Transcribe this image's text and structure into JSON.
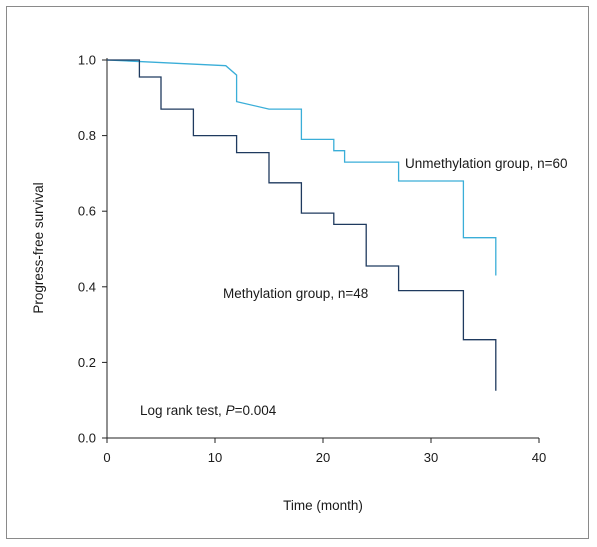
{
  "chart_data": {
    "type": "line",
    "step": true,
    "xlabel": "Time (month)",
    "ylabel": "Progress-free survival",
    "xlim": [
      0,
      40
    ],
    "ylim": [
      0,
      1.0
    ],
    "x_ticks": [
      "0",
      "10",
      "20",
      "30",
      "40"
    ],
    "y_ticks": [
      "0.0",
      "0.2",
      "0.4",
      "0.6",
      "0.8",
      "1.0"
    ],
    "grid": false,
    "annotation": {
      "prefix": "Log rank test, ",
      "italic": "P",
      "suffix": "=0.004"
    },
    "series": [
      {
        "name": "Unmethylation group, n=60",
        "color": "#3aaed8",
        "points": [
          [
            0,
            1.0
          ],
          [
            11,
            0.985
          ],
          [
            12,
            0.96
          ],
          [
            12,
            0.89
          ],
          [
            15,
            0.87
          ],
          [
            18,
            0.87
          ],
          [
            18,
            0.79
          ],
          [
            21,
            0.79
          ],
          [
            21,
            0.76
          ],
          [
            22,
            0.76
          ],
          [
            22,
            0.73
          ],
          [
            27,
            0.73
          ],
          [
            27,
            0.68
          ],
          [
            33,
            0.68
          ],
          [
            33,
            0.53
          ],
          [
            36,
            0.53
          ],
          [
            36,
            0.43
          ]
        ]
      },
      {
        "name": "Methylation group, n=48",
        "color": "#1f3a5f",
        "points": [
          [
            0,
            1.0
          ],
          [
            3,
            1.0
          ],
          [
            3,
            0.955
          ],
          [
            5,
            0.955
          ],
          [
            5,
            0.87
          ],
          [
            8,
            0.87
          ],
          [
            8,
            0.8
          ],
          [
            12,
            0.8
          ],
          [
            12,
            0.755
          ],
          [
            15,
            0.755
          ],
          [
            15,
            0.675
          ],
          [
            18,
            0.675
          ],
          [
            18,
            0.595
          ],
          [
            21,
            0.595
          ],
          [
            21,
            0.565
          ],
          [
            24,
            0.565
          ],
          [
            24,
            0.455
          ],
          [
            27,
            0.455
          ],
          [
            27,
            0.39
          ],
          [
            33,
            0.39
          ],
          [
            33,
            0.26
          ],
          [
            36,
            0.26
          ],
          [
            36,
            0.125
          ]
        ]
      }
    ]
  }
}
